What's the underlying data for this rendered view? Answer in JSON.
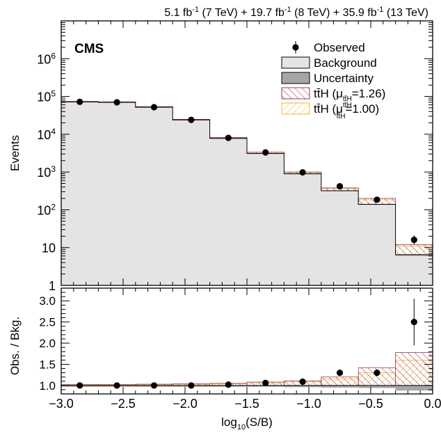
{
  "header": {
    "parts": [
      {
        "text": "5.1 fb",
        "sup": "-1"
      },
      {
        "text": " (7 TeV) + 19.7 fb",
        "sup": "-1"
      },
      {
        "text": " (8 TeV) + 35.9 fb",
        "sup": "-1"
      },
      {
        "text": " (13 TeV)"
      }
    ]
  },
  "experiment_label": "CMS",
  "chart_data": [
    {
      "type": "histogram",
      "panel": "main",
      "xlim": [
        -3.0,
        0.0
      ],
      "yscale": "log",
      "ylim": [
        1,
        10000000
      ],
      "ylabel": "Events",
      "yticks": [
        {
          "value": 1,
          "base": "1",
          "exp": ""
        },
        {
          "value": 10,
          "base": "10",
          "exp": ""
        },
        {
          "value": 100,
          "base": "10",
          "exp": "2"
        },
        {
          "value": 1000,
          "base": "10",
          "exp": "3"
        },
        {
          "value": 10000,
          "base": "10",
          "exp": "4"
        },
        {
          "value": 100000,
          "base": "10",
          "exp": "5"
        },
        {
          "value": 1000000,
          "base": "10",
          "exp": "6"
        }
      ],
      "bin_edges": [
        -3.0,
        -2.7,
        -2.4,
        -2.1,
        -1.8,
        -1.5,
        -1.2,
        -0.9,
        -0.6,
        -0.3,
        0.0
      ],
      "background": [
        72000,
        70000,
        52000,
        24000,
        7800,
        3100,
        900,
        320,
        140,
        6.5
      ],
      "uncertainty_low": [
        70000,
        68000,
        50500,
        23300,
        7550,
        3000,
        870,
        310,
        135,
        6.0
      ],
      "tth_fitted_top": [
        74000,
        72000,
        53800,
        24800,
        8200,
        3350,
        1000,
        380,
        200,
        12
      ],
      "tth_sm_top": [
        73500,
        71500,
        53300,
        24600,
        8100,
        3300,
        975,
        365,
        185,
        11
      ],
      "observed": {
        "x": [
          -2.85,
          -2.55,
          -2.25,
          -1.95,
          -1.65,
          -1.35,
          -1.05,
          -0.75,
          -0.45,
          -0.15
        ],
        "y": [
          72000,
          70000,
          52000,
          24000,
          8000,
          3300,
          980,
          420,
          185,
          16
        ],
        "err_low": [
          70500,
          68500,
          50500,
          23500,
          7800,
          3200,
          950,
          400,
          172,
          12
        ],
        "err_high": [
          73500,
          71500,
          53500,
          24500,
          8200,
          3400,
          1010,
          440,
          198,
          21
        ]
      },
      "legend": {
        "placement": "top-right",
        "entries": [
          {
            "key": "observed",
            "label": "Observed"
          },
          {
            "key": "background",
            "label": "Background"
          },
          {
            "key": "uncertainty",
            "label": "Uncertainty"
          },
          {
            "key": "tth_fit",
            "label": "tt̄H (μ",
            "sub": "tt̄H",
            "tail": "=1.26)"
          },
          {
            "key": "tth_sm",
            "label": "tt̄H (μ",
            "sup": "tt̄H",
            "sub": "tt̄H",
            "tail": "=1.00)"
          }
        ]
      }
    },
    {
      "type": "ratio",
      "panel": "ratio",
      "xlim": [
        -3.0,
        0.0
      ],
      "ylim": [
        0.8,
        3.3
      ],
      "ylabel": "Obs. / Bkg.",
      "yticks": [
        "1.0",
        "1.5",
        "2.0",
        "2.5",
        "3.0"
      ],
      "xticks": [
        "−3.0",
        "−2.5",
        "−2.0",
        "−1.5",
        "−1.0",
        "−0.5",
        "0.0"
      ],
      "xlabel": "log",
      "xlabel_sub": "10",
      "xlabel_tail": "(S/B)",
      "uncertainty_low": [
        0.97,
        0.97,
        0.97,
        0.97,
        0.97,
        0.97,
        0.96,
        0.95,
        0.94,
        0.88
      ],
      "tth_sm_top": [
        1.01,
        1.01,
        1.02,
        1.03,
        1.04,
        1.06,
        1.09,
        1.15,
        1.3,
        1.6
      ],
      "tth_fitted_top": [
        1.02,
        1.02,
        1.03,
        1.04,
        1.05,
        1.08,
        1.11,
        1.2,
        1.42,
        1.78
      ],
      "observed": {
        "x": [
          -2.85,
          -2.55,
          -2.25,
          -1.95,
          -1.65,
          -1.35,
          -1.05,
          -0.75,
          -0.45,
          -0.15
        ],
        "y": [
          1.0,
          1.0,
          1.0,
          1.0,
          1.02,
          1.06,
          1.09,
          1.3,
          1.3,
          2.5
        ],
        "err_low": [
          1.0,
          1.0,
          1.0,
          1.0,
          1.01,
          1.04,
          1.06,
          1.25,
          1.22,
          1.95
        ],
        "err_high": [
          1.0,
          1.0,
          1.0,
          1.0,
          1.03,
          1.08,
          1.12,
          1.35,
          1.38,
          3.05
        ]
      }
    }
  ],
  "colors": {
    "background_fill": "#e4e4e4",
    "uncertainty_fill": "#a6a6a6",
    "tth_fit": "#9b3a52",
    "tth_sm": "#f2b83a",
    "axis": "#000000"
  }
}
